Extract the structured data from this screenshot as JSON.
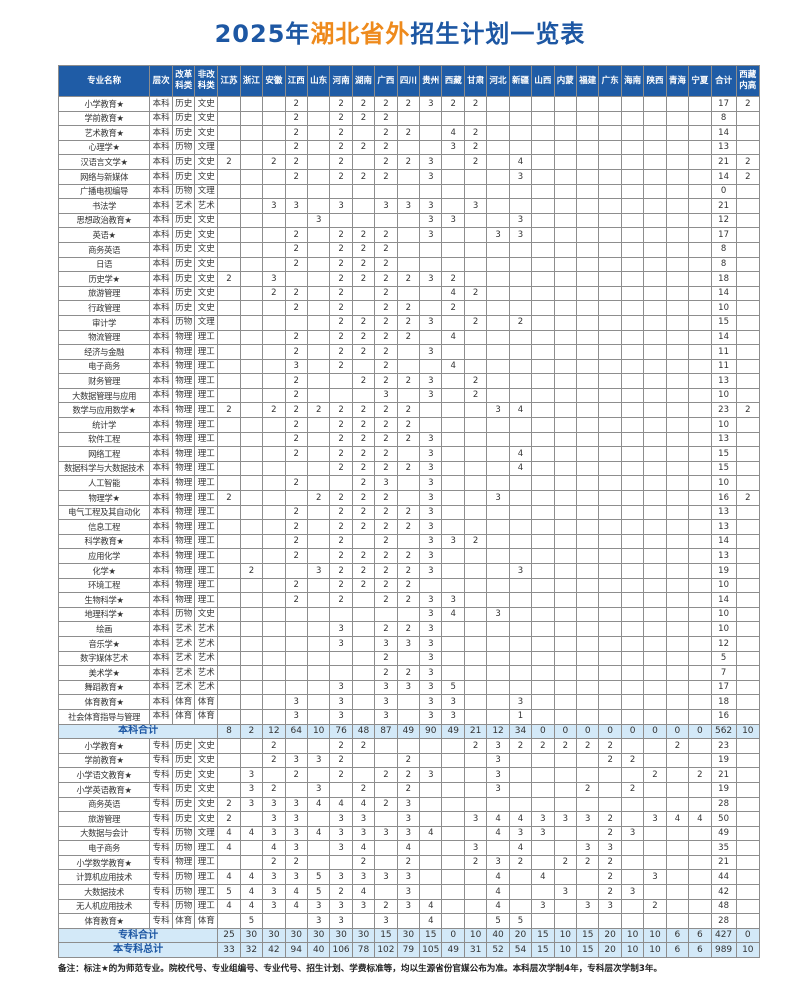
{
  "title": {
    "part1": "2025年",
    "part2": "湖北省外",
    "part3": "招生计划一览表"
  },
  "colors": {
    "title": "#1d57a3",
    "title_highlight": "#ee8a1c",
    "header_bg": "#1f5ca6",
    "total_bg": "#d3e9f8"
  },
  "columns": [
    "专业名称",
    "层次",
    "改革科类",
    "非改科类",
    "江苏",
    "浙江",
    "安徽",
    "江西",
    "山东",
    "河南",
    "湖南",
    "广西",
    "四川",
    "贵州",
    "西藏",
    "甘肃",
    "河北",
    "新疆",
    "山西",
    "内蒙",
    "福建",
    "广东",
    "海南",
    "陕西",
    "青海",
    "宁夏",
    "合计",
    "西藏内高"
  ],
  "rows": [
    [
      "小学教育★",
      "本科",
      "历史",
      "文史",
      "",
      "",
      "",
      "2",
      "",
      "2",
      "2",
      "2",
      "2",
      "3",
      "2",
      "2",
      "",
      "",
      "",
      "",
      "",
      "",
      "",
      "",
      "",
      "",
      "17",
      "2"
    ],
    [
      "学前教育★",
      "本科",
      "历史",
      "文史",
      "",
      "",
      "",
      "2",
      "",
      "2",
      "2",
      "2",
      "",
      "",
      "",
      "",
      "",
      "",
      "",
      "",
      "",
      "",
      "",
      "",
      "",
      "",
      "8",
      ""
    ],
    [
      "艺术教育★",
      "本科",
      "历史",
      "文史",
      "",
      "",
      "",
      "2",
      "",
      "2",
      "",
      "2",
      "2",
      "",
      "4",
      "2",
      "",
      "",
      "",
      "",
      "",
      "",
      "",
      "",
      "",
      "",
      "14",
      ""
    ],
    [
      "心理学★",
      "本科",
      "历物",
      "文理",
      "",
      "",
      "",
      "2",
      "",
      "2",
      "2",
      "2",
      "",
      "",
      "3",
      "2",
      "",
      "",
      "",
      "",
      "",
      "",
      "",
      "",
      "",
      "",
      "13",
      ""
    ],
    [
      "汉语言文学★",
      "本科",
      "历史",
      "文史",
      "2",
      "",
      "2",
      "2",
      "",
      "2",
      "",
      "2",
      "2",
      "3",
      "",
      "2",
      "",
      "4",
      "",
      "",
      "",
      "",
      "",
      "",
      "",
      "",
      "21",
      "2"
    ],
    [
      "网络与新媒体",
      "本科",
      "历史",
      "文史",
      "",
      "",
      "",
      "2",
      "",
      "2",
      "2",
      "2",
      "",
      "3",
      "",
      "",
      "",
      "3",
      "",
      "",
      "",
      "",
      "",
      "",
      "",
      "",
      "14",
      "2"
    ],
    [
      "广播电视编导",
      "本科",
      "历物",
      "文理",
      "",
      "",
      "",
      "",
      "",
      "",
      "",
      "",
      "",
      "",
      "",
      "",
      "",
      "",
      "",
      "",
      "",
      "",
      "",
      "",
      "",
      "",
      "0",
      ""
    ],
    [
      "书法学",
      "本科",
      "艺术",
      "艺术",
      "",
      "",
      "3",
      "3",
      "",
      "3",
      "",
      "3",
      "3",
      "3",
      "",
      "3",
      "",
      "",
      "",
      "",
      "",
      "",
      "",
      "",
      "",
      "",
      "21",
      ""
    ],
    [
      "思想政治教育★",
      "本科",
      "历史",
      "文史",
      "",
      "",
      "",
      "",
      "3",
      "",
      "",
      "",
      "",
      "3",
      "3",
      "",
      "",
      "3",
      "",
      "",
      "",
      "",
      "",
      "",
      "",
      "",
      "12",
      ""
    ],
    [
      "英语★",
      "本科",
      "历史",
      "文史",
      "",
      "",
      "",
      "2",
      "",
      "2",
      "2",
      "2",
      "",
      "3",
      "",
      "",
      "3",
      "3",
      "",
      "",
      "",
      "",
      "",
      "",
      "",
      "",
      "17",
      ""
    ],
    [
      "商务英语",
      "本科",
      "历史",
      "文史",
      "",
      "",
      "",
      "2",
      "",
      "2",
      "2",
      "2",
      "",
      "",
      "",
      "",
      "",
      "",
      "",
      "",
      "",
      "",
      "",
      "",
      "",
      "",
      "8",
      ""
    ],
    [
      "日语",
      "本科",
      "历史",
      "文史",
      "",
      "",
      "",
      "2",
      "",
      "2",
      "2",
      "2",
      "",
      "",
      "",
      "",
      "",
      "",
      "",
      "",
      "",
      "",
      "",
      "",
      "",
      "",
      "8",
      ""
    ],
    [
      "历史学★",
      "本科",
      "历史",
      "文史",
      "2",
      "",
      "3",
      "",
      "",
      "2",
      "2",
      "2",
      "2",
      "3",
      "2",
      "",
      "",
      "",
      "",
      "",
      "",
      "",
      "",
      "",
      "",
      "",
      "18",
      ""
    ],
    [
      "旅游管理",
      "本科",
      "历史",
      "文史",
      "",
      "",
      "2",
      "2",
      "",
      "2",
      "",
      "2",
      "",
      "",
      "4",
      "2",
      "",
      "",
      "",
      "",
      "",
      "",
      "",
      "",
      "",
      "",
      "14",
      ""
    ],
    [
      "行政管理",
      "本科",
      "历史",
      "文史",
      "",
      "",
      "",
      "2",
      "",
      "2",
      "",
      "2",
      "2",
      "",
      "2",
      "",
      "",
      "",
      "",
      "",
      "",
      "",
      "",
      "",
      "",
      "",
      "10",
      ""
    ],
    [
      "审计学",
      "本科",
      "历物",
      "文理",
      "",
      "",
      "",
      "",
      "",
      "2",
      "2",
      "2",
      "2",
      "3",
      "",
      "2",
      "",
      "2",
      "",
      "",
      "",
      "",
      "",
      "",
      "",
      "",
      "15",
      ""
    ],
    [
      "物流管理",
      "本科",
      "物理",
      "理工",
      "",
      "",
      "",
      "2",
      "",
      "2",
      "2",
      "2",
      "2",
      "",
      "4",
      "",
      "",
      "",
      "",
      "",
      "",
      "",
      "",
      "",
      "",
      "",
      "14",
      ""
    ],
    [
      "经济与金融",
      "本科",
      "物理",
      "理工",
      "",
      "",
      "",
      "2",
      "",
      "2",
      "2",
      "2",
      "",
      "3",
      "",
      "",
      "",
      "",
      "",
      "",
      "",
      "",
      "",
      "",
      "",
      "",
      "11",
      ""
    ],
    [
      "电子商务",
      "本科",
      "物理",
      "理工",
      "",
      "",
      "",
      "3",
      "",
      "2",
      "",
      "2",
      "",
      "",
      "4",
      "",
      "",
      "",
      "",
      "",
      "",
      "",
      "",
      "",
      "",
      "",
      "11",
      ""
    ],
    [
      "财务管理",
      "本科",
      "物理",
      "理工",
      "",
      "",
      "",
      "2",
      "",
      "",
      "2",
      "2",
      "2",
      "3",
      "",
      "2",
      "",
      "",
      "",
      "",
      "",
      "",
      "",
      "",
      "",
      "",
      "13",
      ""
    ],
    [
      "大数据管理与应用",
      "本科",
      "物理",
      "理工",
      "",
      "",
      "",
      "2",
      "",
      "",
      "",
      "3",
      "",
      "3",
      "",
      "2",
      "",
      "",
      "",
      "",
      "",
      "",
      "",
      "",
      "",
      "",
      "10",
      ""
    ],
    [
      "数学与应用数学★",
      "本科",
      "物理",
      "理工",
      "2",
      "",
      "2",
      "2",
      "2",
      "2",
      "2",
      "2",
      "2",
      "",
      "",
      "",
      "3",
      "4",
      "",
      "",
      "",
      "",
      "",
      "",
      "",
      "",
      "23",
      "2"
    ],
    [
      "统计学",
      "本科",
      "物理",
      "理工",
      "",
      "",
      "",
      "2",
      "",
      "2",
      "2",
      "2",
      "2",
      "",
      "",
      "",
      "",
      "",
      "",
      "",
      "",
      "",
      "",
      "",
      "",
      "",
      "10",
      ""
    ],
    [
      "软件工程",
      "本科",
      "物理",
      "理工",
      "",
      "",
      "",
      "2",
      "",
      "2",
      "2",
      "2",
      "2",
      "3",
      "",
      "",
      "",
      "",
      "",
      "",
      "",
      "",
      "",
      "",
      "",
      "",
      "13",
      ""
    ],
    [
      "网络工程",
      "本科",
      "物理",
      "理工",
      "",
      "",
      "",
      "2",
      "",
      "2",
      "2",
      "2",
      "",
      "3",
      "",
      "",
      "",
      "4",
      "",
      "",
      "",
      "",
      "",
      "",
      "",
      "",
      "15",
      ""
    ],
    [
      "数据科学与大数据技术",
      "本科",
      "物理",
      "理工",
      "",
      "",
      "",
      "",
      "",
      "2",
      "2",
      "2",
      "2",
      "3",
      "",
      "",
      "",
      "4",
      "",
      "",
      "",
      "",
      "",
      "",
      "",
      "",
      "15",
      ""
    ],
    [
      "人工智能",
      "本科",
      "物理",
      "理工",
      "",
      "",
      "",
      "2",
      "",
      "",
      "2",
      "3",
      "",
      "3",
      "",
      "",
      "",
      "",
      "",
      "",
      "",
      "",
      "",
      "",
      "",
      "",
      "10",
      ""
    ],
    [
      "物理学★",
      "本科",
      "物理",
      "理工",
      "2",
      "",
      "",
      "",
      "2",
      "2",
      "2",
      "2",
      "",
      "3",
      "",
      "",
      "3",
      "",
      "",
      "",
      "",
      "",
      "",
      "",
      "",
      "",
      "16",
      "2"
    ],
    [
      "电气工程及其自动化",
      "本科",
      "物理",
      "理工",
      "",
      "",
      "",
      "2",
      "",
      "2",
      "2",
      "2",
      "2",
      "3",
      "",
      "",
      "",
      "",
      "",
      "",
      "",
      "",
      "",
      "",
      "",
      "",
      "13",
      ""
    ],
    [
      "信息工程",
      "本科",
      "物理",
      "理工",
      "",
      "",
      "",
      "2",
      "",
      "2",
      "2",
      "2",
      "2",
      "3",
      "",
      "",
      "",
      "",
      "",
      "",
      "",
      "",
      "",
      "",
      "",
      "",
      "13",
      ""
    ],
    [
      "科学教育★",
      "本科",
      "物理",
      "理工",
      "",
      "",
      "",
      "2",
      "",
      "2",
      "",
      "2",
      "",
      "3",
      "3",
      "2",
      "",
      "",
      "",
      "",
      "",
      "",
      "",
      "",
      "",
      "",
      "14",
      ""
    ],
    [
      "应用化学",
      "本科",
      "物理",
      "理工",
      "",
      "",
      "",
      "2",
      "",
      "2",
      "2",
      "2",
      "2",
      "3",
      "",
      "",
      "",
      "",
      "",
      "",
      "",
      "",
      "",
      "",
      "",
      "",
      "13",
      ""
    ],
    [
      "化学★",
      "本科",
      "物理",
      "理工",
      "",
      "2",
      "",
      "",
      "3",
      "2",
      "2",
      "2",
      "2",
      "3",
      "",
      "",
      "",
      "3",
      "",
      "",
      "",
      "",
      "",
      "",
      "",
      "",
      "19",
      ""
    ],
    [
      "环境工程",
      "本科",
      "物理",
      "理工",
      "",
      "",
      "",
      "2",
      "",
      "2",
      "2",
      "2",
      "2",
      "",
      "",
      "",
      "",
      "",
      "",
      "",
      "",
      "",
      "",
      "",
      "",
      "",
      "10",
      ""
    ],
    [
      "生物科学★",
      "本科",
      "物理",
      "理工",
      "",
      "",
      "",
      "2",
      "",
      "2",
      "",
      "2",
      "2",
      "3",
      "3",
      "",
      "",
      "",
      "",
      "",
      "",
      "",
      "",
      "",
      "",
      "",
      "14",
      ""
    ],
    [
      "地理科学★",
      "本科",
      "历物",
      "文史",
      "",
      "",
      "",
      "",
      "",
      "",
      "",
      "",
      "",
      "3",
      "4",
      "",
      "3",
      "",
      "",
      "",
      "",
      "",
      "",
      "",
      "",
      "",
      "10",
      ""
    ],
    [
      "绘画",
      "本科",
      "艺术",
      "艺术",
      "",
      "",
      "",
      "",
      "",
      "3",
      "",
      "2",
      "2",
      "3",
      "",
      "",
      "",
      "",
      "",
      "",
      "",
      "",
      "",
      "",
      "",
      "",
      "10",
      ""
    ],
    [
      "音乐学★",
      "本科",
      "艺术",
      "艺术",
      "",
      "",
      "",
      "",
      "",
      "3",
      "",
      "3",
      "3",
      "3",
      "",
      "",
      "",
      "",
      "",
      "",
      "",
      "",
      "",
      "",
      "",
      "",
      "12",
      ""
    ],
    [
      "数字媒体艺术",
      "本科",
      "艺术",
      "艺术",
      "",
      "",
      "",
      "",
      "",
      "",
      "",
      "2",
      "",
      "3",
      "",
      "",
      "",
      "",
      "",
      "",
      "",
      "",
      "",
      "",
      "",
      "",
      "5",
      ""
    ],
    [
      "美术学★",
      "本科",
      "艺术",
      "艺术",
      "",
      "",
      "",
      "",
      "",
      "",
      "",
      "2",
      "2",
      "3",
      "",
      "",
      "",
      "",
      "",
      "",
      "",
      "",
      "",
      "",
      "",
      "",
      "7",
      ""
    ],
    [
      "舞蹈教育★",
      "本科",
      "艺术",
      "艺术",
      "",
      "",
      "",
      "",
      "",
      "3",
      "",
      "3",
      "3",
      "3",
      "5",
      "",
      "",
      "",
      "",
      "",
      "",
      "",
      "",
      "",
      "",
      "",
      "17",
      ""
    ],
    [
      "体育教育★",
      "本科",
      "体育",
      "体育",
      "",
      "",
      "",
      "3",
      "",
      "3",
      "",
      "3",
      "",
      "3",
      "3",
      "",
      "",
      "3",
      "",
      "",
      "",
      "",
      "",
      "",
      "",
      "",
      "18",
      ""
    ],
    [
      "社会体育指导与管理",
      "本科",
      "体育",
      "体育",
      "",
      "",
      "",
      "3",
      "",
      "3",
      "",
      "3",
      "",
      "3",
      "3",
      "",
      "",
      "1",
      "",
      "",
      "",
      "",
      "",
      "",
      "",
      "",
      "16",
      ""
    ]
  ],
  "undergrad_total": {
    "label": "本科合计",
    "values": [
      "8",
      "2",
      "12",
      "64",
      "10",
      "76",
      "48",
      "87",
      "49",
      "90",
      "49",
      "21",
      "12",
      "34",
      "0",
      "0",
      "0",
      "0",
      "0",
      "0",
      "0",
      "0",
      "562",
      "10"
    ]
  },
  "college_rows": [
    [
      "小学教育★",
      "专科",
      "历史",
      "文史",
      "",
      "",
      "2",
      "",
      "",
      "2",
      "2",
      "",
      "",
      "",
      "",
      "2",
      "3",
      "2",
      "2",
      "2",
      "2",
      "2",
      "",
      "",
      "2",
      "",
      "23",
      ""
    ],
    [
      "学前教育★",
      "专科",
      "历史",
      "文史",
      "",
      "",
      "2",
      "3",
      "3",
      "2",
      "",
      "",
      "2",
      "",
      "",
      "",
      "3",
      "",
      "",
      "",
      "",
      "2",
      "2",
      "",
      "",
      "",
      "19",
      ""
    ],
    [
      "小学语文教育★",
      "专科",
      "历史",
      "文史",
      "",
      "3",
      "",
      "2",
      "",
      "2",
      "",
      "2",
      "2",
      "3",
      "",
      "",
      "3",
      "",
      "",
      "",
      "",
      "",
      "",
      "2",
      "",
      "2",
      "21",
      ""
    ],
    [
      "小学英语教育★",
      "专科",
      "历史",
      "文史",
      "",
      "3",
      "2",
      "",
      "3",
      "",
      "2",
      "",
      "2",
      "",
      "",
      "",
      "3",
      "",
      "",
      "",
      "2",
      "",
      "2",
      "",
      "",
      "",
      "19",
      ""
    ],
    [
      "商务英语",
      "专科",
      "历史",
      "文史",
      "2",
      "3",
      "3",
      "3",
      "4",
      "4",
      "4",
      "2",
      "3",
      "",
      "",
      "",
      "",
      "",
      "",
      "",
      "",
      "",
      "",
      "",
      "",
      "",
      "28",
      ""
    ],
    [
      "旅游管理",
      "专科",
      "历史",
      "文史",
      "2",
      "",
      "3",
      "3",
      "",
      "3",
      "3",
      "",
      "3",
      "",
      "",
      "3",
      "4",
      "4",
      "3",
      "3",
      "3",
      "2",
      "",
      "3",
      "4",
      "4",
      "50",
      ""
    ],
    [
      "大数据与会计",
      "专科",
      "历物",
      "文理",
      "4",
      "4",
      "3",
      "3",
      "4",
      "3",
      "3",
      "3",
      "3",
      "4",
      "",
      "",
      "4",
      "3",
      "3",
      "",
      "",
      "2",
      "3",
      "",
      "",
      "",
      "49",
      ""
    ],
    [
      "电子商务",
      "专科",
      "历物",
      "理工",
      "4",
      "",
      "4",
      "3",
      "",
      "3",
      "4",
      "",
      "4",
      "",
      "",
      "3",
      "",
      "4",
      "",
      "",
      "3",
      "3",
      "",
      "",
      "",
      "",
      "35",
      ""
    ],
    [
      "小学数学教育★",
      "专科",
      "物理",
      "理工",
      "",
      "",
      "2",
      "2",
      "",
      "",
      "2",
      "",
      "2",
      "",
      "",
      "2",
      "3",
      "2",
      "",
      "2",
      "2",
      "2",
      "",
      "",
      "",
      "",
      "21",
      ""
    ],
    [
      "计算机应用技术",
      "专科",
      "历物",
      "理工",
      "4",
      "4",
      "3",
      "3",
      "5",
      "3",
      "3",
      "3",
      "3",
      "",
      "",
      "",
      "4",
      "",
      "4",
      "",
      "",
      "2",
      "",
      "3",
      "",
      "",
      "44",
      ""
    ],
    [
      "大数据技术",
      "专科",
      "历物",
      "理工",
      "5",
      "4",
      "3",
      "4",
      "5",
      "2",
      "4",
      "",
      "3",
      "",
      "",
      "",
      "4",
      "",
      "",
      "3",
      "",
      "2",
      "3",
      "",
      "",
      "",
      "42",
      ""
    ],
    [
      "无人机应用技术",
      "专科",
      "历物",
      "理工",
      "4",
      "4",
      "3",
      "4",
      "3",
      "3",
      "3",
      "2",
      "3",
      "4",
      "",
      "",
      "4",
      "",
      "3",
      "",
      "3",
      "3",
      "",
      "2",
      "",
      "",
      "48",
      ""
    ],
    [
      "体育教育★",
      "专科",
      "体育",
      "体育",
      "",
      "5",
      "",
      "",
      "3",
      "3",
      "",
      "3",
      "",
      "4",
      "",
      "",
      "5",
      "5",
      "",
      "",
      "",
      "",
      "",
      "",
      "",
      "",
      "28",
      ""
    ]
  ],
  "college_total": {
    "label": "专科合计",
    "values": [
      "25",
      "30",
      "30",
      "30",
      "30",
      "30",
      "30",
      "15",
      "30",
      "15",
      "0",
      "10",
      "40",
      "20",
      "15",
      "10",
      "15",
      "20",
      "10",
      "10",
      "6",
      "6",
      "427",
      "0"
    ]
  },
  "grand_total": {
    "label": "本专科总计",
    "values": [
      "33",
      "32",
      "42",
      "94",
      "40",
      "106",
      "78",
      "102",
      "79",
      "105",
      "49",
      "31",
      "52",
      "54",
      "15",
      "10",
      "15",
      "20",
      "10",
      "10",
      "6",
      "6",
      "989",
      "10"
    ]
  },
  "note": "备注：标注★的为师范专业。院校代号、专业组编号、专业代号、招生计划、学费标准等，均以生源省份官媒公布为准。本科层次学制4年，专科层次学制3年。"
}
